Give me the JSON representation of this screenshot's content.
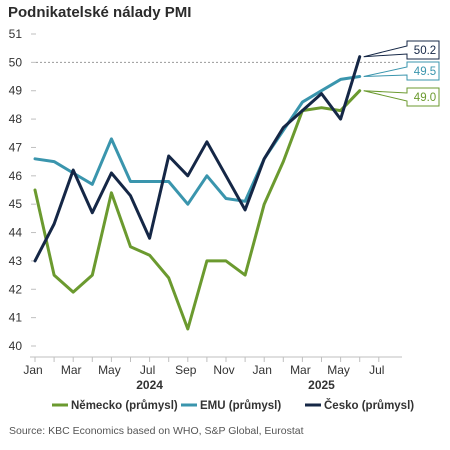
{
  "title": "Podnikatelské nálady PMI",
  "source": "Source: KBC Economics based on WHO, S&P Global, Eurostat",
  "chart_data": {
    "type": "line",
    "x": [
      "2024-01",
      "2024-02",
      "2024-03",
      "2024-04",
      "2024-05",
      "2024-06",
      "2024-07",
      "2024-08",
      "2024-09",
      "2024-10",
      "2024-11",
      "2024-12",
      "2025-01",
      "2025-02",
      "2025-03",
      "2025-04",
      "2025-05",
      "2025-06",
      "2025-07"
    ],
    "x_tick_labels": [
      "Jan",
      "Mar",
      "May",
      "Jul",
      "Sep",
      "Nov",
      "Jan",
      "Mar",
      "May",
      "Jul"
    ],
    "year_labels": [
      "2024",
      "2025"
    ],
    "ylim": [
      40,
      51
    ],
    "y_ticks": [
      40,
      41,
      42,
      43,
      44,
      45,
      46,
      47,
      48,
      49,
      50,
      51
    ],
    "reference_line": 50,
    "series": [
      {
        "name": "Německo (průmysl)",
        "color": "#6b9a2f",
        "values": [
          45.5,
          42.5,
          41.9,
          42.5,
          45.4,
          43.5,
          43.2,
          42.4,
          40.6,
          43.0,
          43.0,
          42.5,
          45.0,
          46.5,
          48.3,
          48.4,
          48.3,
          49.0,
          null
        ],
        "label": "49.0"
      },
      {
        "name": "EMU (průmysl)",
        "color": "#3a95ad",
        "values": [
          46.6,
          46.5,
          46.1,
          45.7,
          47.3,
          45.8,
          45.8,
          45.8,
          45.0,
          46.0,
          45.2,
          45.1,
          46.6,
          47.6,
          48.6,
          49.0,
          49.4,
          49.5,
          null
        ],
        "label": "49.5"
      },
      {
        "name": "Česko (průmysl)",
        "color": "#152746",
        "values": [
          43.0,
          44.3,
          46.2,
          44.7,
          46.1,
          45.3,
          43.8,
          46.7,
          46.0,
          47.2,
          46.0,
          44.8,
          46.6,
          47.7,
          48.3,
          48.9,
          48.0,
          50.2,
          null
        ],
        "label": "50.2"
      }
    ],
    "legend_position": "bottom",
    "grid": false
  }
}
